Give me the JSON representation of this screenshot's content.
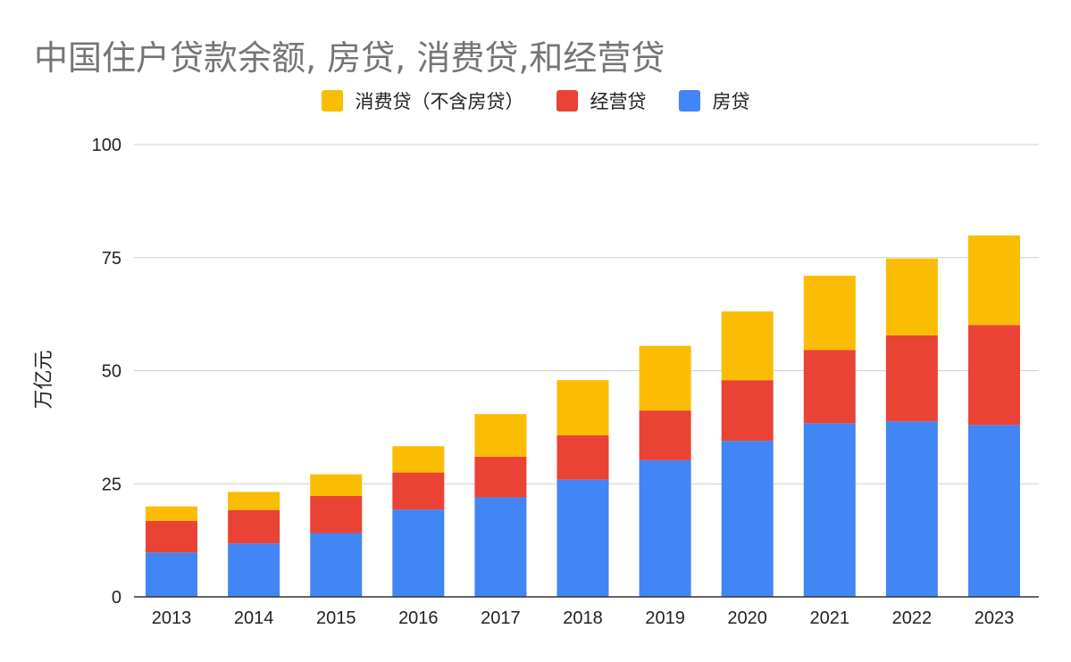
{
  "chart_data": {
    "type": "bar",
    "stacked": true,
    "title": "中国住户贷款余额, 房贷, 消费贷,和经营贷",
    "ylabel": "万亿元",
    "xlabel": "",
    "ylim": [
      0,
      100
    ],
    "yticks": [
      0,
      25,
      50,
      75,
      100
    ],
    "grid": true,
    "legend_position": "top",
    "categories": [
      "2013",
      "2014",
      "2015",
      "2016",
      "2017",
      "2018",
      "2019",
      "2020",
      "2021",
      "2022",
      "2023"
    ],
    "series": [
      {
        "name": "房贷",
        "color": "#4285F4",
        "values": [
          9.8,
          11.8,
          14.1,
          19.3,
          22.0,
          25.9,
          30.2,
          34.5,
          38.4,
          38.8,
          38.0
        ]
      },
      {
        "name": "经营贷",
        "color": "#EA4335",
        "values": [
          7.0,
          7.4,
          8.2,
          8.2,
          9.0,
          9.8,
          11.0,
          13.4,
          16.2,
          19.0,
          22.1
        ]
      },
      {
        "name": "消费贷（不含房贷）",
        "color": "#FBBC04",
        "values": [
          3.2,
          4.0,
          4.8,
          5.8,
          9.4,
          12.2,
          14.3,
          15.2,
          16.4,
          17.0,
          19.8
        ]
      }
    ],
    "legend_order": [
      2,
      1,
      0
    ]
  }
}
